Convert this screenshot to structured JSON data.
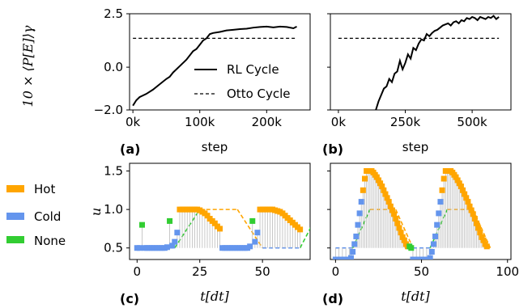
{
  "colors": {
    "hot": "#FFA500",
    "cold": "#6495ED",
    "none": "#32CD32",
    "rl": "#000000",
    "otto": "#000000",
    "stem": "#bbbbbb"
  },
  "chart_data": [
    {
      "panel": "(a)",
      "type": "line",
      "ylabel": "10 × ⟨P[E]⟩γ",
      "xlabel": "step",
      "xlim": [
        -5000,
        265000
      ],
      "ylim": [
        -2.0,
        2.5
      ],
      "xticks": [
        0,
        100000,
        200000
      ],
      "xtick_labels": [
        "0k",
        "100k",
        "200k"
      ],
      "yticks": [
        2.5,
        0.0,
        -2.0
      ],
      "ytick_labels": [
        "2.5",
        "0.0",
        "−2.0"
      ],
      "legend_position": "lower-right",
      "series": [
        {
          "name": "RL Cycle",
          "style": "solid",
          "x": [
            0,
            5000,
            10000,
            20000,
            30000,
            40000,
            50000,
            55000,
            60000,
            70000,
            80000,
            90000,
            95000,
            100000,
            105000,
            110000,
            115000,
            120000,
            130000,
            140000,
            150000,
            160000,
            170000,
            180000,
            190000,
            200000,
            210000,
            220000,
            230000,
            240000,
            245000
          ],
          "y": [
            -1.8,
            -1.55,
            -1.4,
            -1.25,
            -1.05,
            -0.8,
            -0.55,
            -0.45,
            -0.25,
            0.05,
            0.35,
            0.75,
            0.85,
            1.05,
            1.25,
            1.35,
            1.55,
            1.6,
            1.65,
            1.72,
            1.75,
            1.78,
            1.8,
            1.85,
            1.88,
            1.9,
            1.86,
            1.9,
            1.88,
            1.82,
            1.9
          ]
        },
        {
          "name": "Otto Cycle",
          "style": "dashed",
          "x": [
            0,
            245000
          ],
          "y": [
            1.35,
            1.35
          ]
        }
      ]
    },
    {
      "panel": "(b)",
      "type": "line",
      "xlabel": "step",
      "xlim": [
        -30000,
        645000
      ],
      "ylim": [
        -2.0,
        2.5
      ],
      "xticks": [
        0,
        250000,
        500000
      ],
      "xtick_labels": [
        "0k",
        "250k",
        "500k"
      ],
      "series": [
        {
          "name": "RL Cycle",
          "style": "solid",
          "x": [
            140000,
            150000,
            160000,
            170000,
            180000,
            190000,
            200000,
            210000,
            220000,
            230000,
            240000,
            250000,
            260000,
            270000,
            280000,
            290000,
            300000,
            310000,
            320000,
            330000,
            340000,
            350000,
            360000,
            370000,
            380000,
            390000,
            400000,
            410000,
            420000,
            430000,
            440000,
            450000,
            460000,
            470000,
            480000,
            490000,
            500000,
            510000,
            520000,
            530000,
            540000,
            550000,
            560000,
            570000,
            580000,
            590000,
            600000
          ],
          "y": [
            -2.0,
            -1.6,
            -1.3,
            -1.0,
            -0.9,
            -0.55,
            -0.7,
            -0.3,
            -0.2,
            0.3,
            -0.1,
            0.2,
            0.6,
            0.4,
            0.9,
            0.8,
            1.1,
            1.3,
            1.25,
            1.55,
            1.45,
            1.6,
            1.7,
            1.75,
            1.85,
            1.95,
            2.0,
            2.05,
            1.95,
            2.1,
            2.15,
            2.05,
            2.2,
            2.15,
            2.3,
            2.25,
            2.35,
            2.3,
            2.2,
            2.35,
            2.3,
            2.25,
            2.35,
            2.3,
            2.4,
            2.25,
            2.35
          ]
        },
        {
          "name": "Otto Cycle",
          "style": "dashed",
          "x": [
            0,
            600000
          ],
          "y": [
            1.35,
            1.35
          ]
        }
      ]
    },
    {
      "panel": "(c)",
      "type": "scatter",
      "xlabel": "t[dt]",
      "ylabel": "u",
      "xlim": [
        -3,
        69
      ],
      "ylim": [
        0.35,
        1.6
      ],
      "xticks": [
        0,
        25,
        50
      ],
      "xtick_labels": [
        "0",
        "25",
        "50"
      ],
      "yticks": [
        0.5,
        1.0,
        1.5
      ],
      "ytick_labels": [
        "0.5",
        "1.0",
        "1.5"
      ],
      "actions": [
        [
          0,
          "cold",
          0.5
        ],
        [
          1,
          "cold",
          0.5
        ],
        [
          2,
          "none",
          0.8
        ],
        [
          3,
          "cold",
          0.5
        ],
        [
          4,
          "cold",
          0.5
        ],
        [
          5,
          "cold",
          0.5
        ],
        [
          6,
          "cold",
          0.5
        ],
        [
          7,
          "cold",
          0.5
        ],
        [
          8,
          "cold",
          0.5
        ],
        [
          9,
          "cold",
          0.5
        ],
        [
          10,
          "cold",
          0.5
        ],
        [
          11,
          "cold",
          0.5
        ],
        [
          12,
          "cold",
          0.51
        ],
        [
          13,
          "none",
          0.85
        ],
        [
          14,
          "cold",
          0.53
        ],
        [
          15,
          "cold",
          0.58
        ],
        [
          16,
          "cold",
          0.7
        ],
        [
          17,
          "hot",
          1.0
        ],
        [
          18,
          "hot",
          1.0
        ],
        [
          19,
          "hot",
          1.0
        ],
        [
          20,
          "hot",
          1.0
        ],
        [
          21,
          "hot",
          1.0
        ],
        [
          22,
          "hot",
          1.0
        ],
        [
          23,
          "hot",
          1.0
        ],
        [
          24,
          "hot",
          1.0
        ],
        [
          25,
          "hot",
          0.99
        ],
        [
          26,
          "hot",
          0.97
        ],
        [
          27,
          "hot",
          0.95
        ],
        [
          28,
          "hot",
          0.92
        ],
        [
          29,
          "hot",
          0.88
        ],
        [
          30,
          "hot",
          0.85
        ],
        [
          31,
          "hot",
          0.82
        ],
        [
          32,
          "hot",
          0.78
        ],
        [
          33,
          "hot",
          0.75
        ],
        [
          34,
          "cold",
          0.5
        ],
        [
          35,
          "cold",
          0.5
        ],
        [
          36,
          "cold",
          0.5
        ],
        [
          37,
          "cold",
          0.5
        ],
        [
          38,
          "cold",
          0.5
        ],
        [
          39,
          "cold",
          0.5
        ],
        [
          40,
          "cold",
          0.5
        ],
        [
          41,
          "cold",
          0.5
        ],
        [
          42,
          "cold",
          0.5
        ],
        [
          43,
          "cold",
          0.5
        ],
        [
          44,
          "cold",
          0.5
        ],
        [
          45,
          "cold",
          0.52
        ],
        [
          46,
          "none",
          0.85
        ],
        [
          47,
          "cold",
          0.58
        ],
        [
          48,
          "cold",
          0.7
        ],
        [
          49,
          "hot",
          1.0
        ],
        [
          50,
          "hot",
          1.0
        ],
        [
          51,
          "hot",
          1.0
        ],
        [
          52,
          "hot",
          1.0
        ],
        [
          53,
          "hot",
          1.0
        ],
        [
          54,
          "hot",
          1.0
        ],
        [
          55,
          "hot",
          0.99
        ],
        [
          56,
          "hot",
          0.98
        ],
        [
          57,
          "hot",
          0.97
        ],
        [
          58,
          "hot",
          0.95
        ],
        [
          59,
          "hot",
          0.92
        ],
        [
          60,
          "hot",
          0.89
        ],
        [
          61,
          "hot",
          0.86
        ],
        [
          62,
          "hot",
          0.83
        ],
        [
          63,
          "hot",
          0.8
        ],
        [
          64,
          "hot",
          0.77
        ],
        [
          65,
          "hot",
          0.74
        ]
      ],
      "otto": [
        [
          0,
          0.5,
          "cold"
        ],
        [
          15,
          0.5,
          "cold"
        ],
        [
          25,
          1.0,
          "hot"
        ],
        [
          40,
          1.0,
          "hot"
        ],
        [
          50,
          0.5,
          "cold"
        ],
        [
          65,
          0.5,
          "cold"
        ],
        [
          73,
          1.0,
          "hot"
        ]
      ]
    },
    {
      "panel": "(d)",
      "type": "scatter",
      "xlabel": "t[dt]",
      "xlim": [
        -3,
        102
      ],
      "ylim": [
        0.35,
        1.6
      ],
      "xticks": [
        0,
        50,
        100
      ],
      "xtick_labels": [
        "0",
        "50",
        "100"
      ],
      "actions": [
        [
          0,
          "cold",
          0.35
        ],
        [
          2,
          "cold",
          0.35
        ],
        [
          4,
          "cold",
          0.35
        ],
        [
          6,
          "cold",
          0.35
        ],
        [
          8,
          "cold",
          0.35
        ],
        [
          9,
          "cold",
          0.37
        ],
        [
          10,
          "cold",
          0.45
        ],
        [
          11,
          "cold",
          0.55
        ],
        [
          12,
          "cold",
          0.65
        ],
        [
          13,
          "cold",
          0.8
        ],
        [
          14,
          "cold",
          0.95
        ],
        [
          15,
          "cold",
          1.1
        ],
        [
          16,
          "hot",
          1.25
        ],
        [
          17,
          "hot",
          1.4
        ],
        [
          18,
          "hot",
          1.5
        ],
        [
          19,
          "hot",
          1.5
        ],
        [
          20,
          "hot",
          1.5
        ],
        [
          21,
          "hot",
          1.5
        ],
        [
          22,
          "hot",
          1.48
        ],
        [
          23,
          "hot",
          1.45
        ],
        [
          24,
          "hot",
          1.42
        ],
        [
          25,
          "hot",
          1.38
        ],
        [
          26,
          "hot",
          1.34
        ],
        [
          27,
          "hot",
          1.3
        ],
        [
          28,
          "hot",
          1.25
        ],
        [
          29,
          "hot",
          1.2
        ],
        [
          30,
          "hot",
          1.15
        ],
        [
          31,
          "hot",
          1.1
        ],
        [
          32,
          "hot",
          1.04
        ],
        [
          33,
          "hot",
          0.99
        ],
        [
          34,
          "hot",
          0.94
        ],
        [
          35,
          "hot",
          0.88
        ],
        [
          36,
          "hot",
          0.82
        ],
        [
          37,
          "hot",
          0.76
        ],
        [
          38,
          "hot",
          0.7
        ],
        [
          39,
          "hot",
          0.64
        ],
        [
          40,
          "hot",
          0.6
        ],
        [
          41,
          "hot",
          0.55
        ],
        [
          42,
          "hot",
          0.52
        ],
        [
          43,
          "none",
          0.52
        ],
        [
          44,
          "none",
          0.5
        ],
        [
          45,
          "cold",
          0.35
        ],
        [
          47,
          "cold",
          0.35
        ],
        [
          49,
          "cold",
          0.35
        ],
        [
          51,
          "cold",
          0.35
        ],
        [
          53,
          "cold",
          0.35
        ],
        [
          55,
          "cold",
          0.37
        ],
        [
          56,
          "cold",
          0.45
        ],
        [
          57,
          "cold",
          0.55
        ],
        [
          58,
          "cold",
          0.65
        ],
        [
          59,
          "cold",
          0.8
        ],
        [
          60,
          "cold",
          0.95
        ],
        [
          61,
          "cold",
          1.1
        ],
        [
          62,
          "hot",
          1.25
        ],
        [
          63,
          "hot",
          1.4
        ],
        [
          64,
          "hot",
          1.5
        ],
        [
          65,
          "hot",
          1.5
        ],
        [
          66,
          "hot",
          1.5
        ],
        [
          67,
          "hot",
          1.5
        ],
        [
          68,
          "hot",
          1.48
        ],
        [
          69,
          "hot",
          1.45
        ],
        [
          70,
          "hot",
          1.42
        ],
        [
          71,
          "hot",
          1.38
        ],
        [
          72,
          "hot",
          1.34
        ],
        [
          73,
          "hot",
          1.3
        ],
        [
          74,
          "hot",
          1.25
        ],
        [
          75,
          "hot",
          1.2
        ],
        [
          76,
          "hot",
          1.15
        ],
        [
          77,
          "hot",
          1.1
        ],
        [
          78,
          "hot",
          1.04
        ],
        [
          79,
          "hot",
          0.99
        ],
        [
          80,
          "hot",
          0.94
        ],
        [
          81,
          "hot",
          0.88
        ],
        [
          82,
          "hot",
          0.82
        ],
        [
          83,
          "hot",
          0.76
        ],
        [
          84,
          "hot",
          0.7
        ],
        [
          85,
          "hot",
          0.64
        ],
        [
          86,
          "hot",
          0.6
        ],
        [
          87,
          "hot",
          0.55
        ],
        [
          88,
          "hot",
          0.52
        ]
      ],
      "otto": [
        [
          0,
          0.5,
          "cold"
        ],
        [
          10,
          0.5,
          "cold"
        ],
        [
          20,
          1.0,
          "hot"
        ],
        [
          35,
          1.0,
          "hot"
        ],
        [
          45,
          0.5,
          "cold"
        ],
        [
          55,
          0.5,
          "cold"
        ],
        [
          65,
          1.0,
          "hot"
        ],
        [
          80,
          1.0,
          "hot"
        ],
        [
          90,
          0.5,
          "cold"
        ]
      ]
    }
  ],
  "legend_top": {
    "rl": "RL Cycle",
    "otto": "Otto Cycle"
  },
  "legend_left": {
    "hot": "Hot",
    "cold": "Cold",
    "none": "None"
  }
}
